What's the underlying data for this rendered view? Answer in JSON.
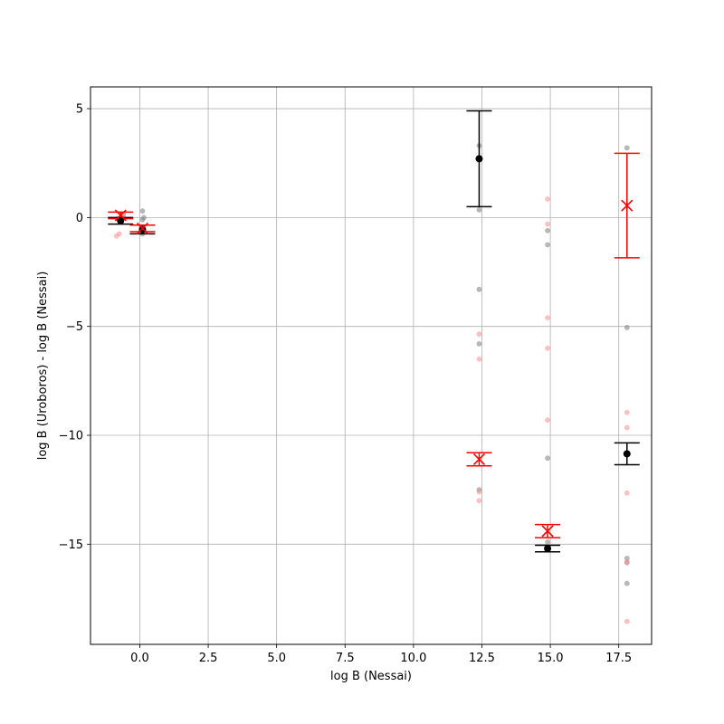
{
  "chart_data": {
    "type": "scatter",
    "title": "",
    "xlabel": "log B (Nessai)",
    "ylabel": "log B (Uroboros) - log B (Nessai)",
    "xlim": [
      -1.8,
      18.7
    ],
    "ylim": [
      -19.6,
      6.0
    ],
    "xticks": [
      0.0,
      2.5,
      5.0,
      7.5,
      10.0,
      12.5,
      15.0,
      17.5
    ],
    "xtick_labels": [
      "0.0",
      "2.5",
      "5.0",
      "7.5",
      "10.0",
      "12.5",
      "15.0",
      "17.5"
    ],
    "yticks": [
      5,
      0,
      -5,
      -10,
      -15
    ],
    "ytick_labels": [
      "5",
      "0",
      "−5",
      "−10",
      "−15"
    ],
    "grid": true,
    "series": [
      {
        "marker": "circle",
        "color": "#000000",
        "raw_color": "#808080",
        "groups": [
          {
            "x": -0.7,
            "y": -0.15,
            "yerr_low": 0.15,
            "yerr_high": 0.15,
            "raw": [
              [
                -0.7,
                0.0
              ],
              [
                -0.6,
                0.15
              ],
              [
                -0.8,
                -0.05
              ]
            ]
          },
          {
            "x": 0.1,
            "y": -0.55,
            "yerr_low": 0.2,
            "yerr_high": 0.2,
            "raw": [
              [
                0.1,
                0.3
              ],
              [
                0.15,
                0.0
              ],
              [
                0.1,
                -0.1
              ],
              [
                0.1,
                -0.55
              ],
              [
                0.1,
                -0.75
              ]
            ]
          },
          {
            "x": 12.4,
            "y": 2.7,
            "yerr_low": 2.2,
            "yerr_high": 2.2,
            "raw": [
              [
                12.4,
                3.3
              ],
              [
                12.4,
                0.35
              ],
              [
                12.4,
                -3.3
              ],
              [
                12.4,
                -5.8
              ],
              [
                12.4,
                -12.5
              ]
            ]
          },
          {
            "x": 14.9,
            "y": -15.2,
            "yerr_low": 0.15,
            "yerr_high": 0.15,
            "raw": [
              [
                14.9,
                -0.6
              ],
              [
                14.9,
                -1.25
              ],
              [
                14.9,
                -11.05
              ],
              [
                14.9,
                -14.9
              ]
            ]
          },
          {
            "x": 17.8,
            "y": -10.85,
            "yerr_low": 0.5,
            "yerr_high": 0.5,
            "raw": [
              [
                17.8,
                3.2
              ],
              [
                17.8,
                -5.05
              ],
              [
                17.8,
                -15.65
              ],
              [
                17.8,
                -15.85
              ],
              [
                17.8,
                -16.8
              ]
            ]
          }
        ]
      },
      {
        "marker": "x",
        "color": "#ff0000",
        "raw_color": "#ff9090",
        "groups": [
          {
            "x": -0.7,
            "y": 0.1,
            "yerr_low": 0.15,
            "yerr_high": 0.15,
            "raw": [
              [
                -0.75,
                -0.75
              ],
              [
                -0.85,
                -0.85
              ],
              [
                -0.6,
                0.05
              ]
            ]
          },
          {
            "x": 0.1,
            "y": -0.5,
            "yerr_low": 0.15,
            "yerr_high": 0.15,
            "raw": [
              [
                0.05,
                -0.45
              ],
              [
                0.1,
                -0.6
              ]
            ]
          },
          {
            "x": 12.4,
            "y": -11.1,
            "yerr_low": 0.3,
            "yerr_high": 0.3,
            "raw": [
              [
                12.4,
                -5.35
              ],
              [
                12.4,
                -6.5
              ],
              [
                12.4,
                -12.6
              ],
              [
                12.4,
                -13.0
              ]
            ]
          },
          {
            "x": 14.9,
            "y": -14.4,
            "yerr_low": 0.3,
            "yerr_high": 0.3,
            "raw": [
              [
                14.9,
                0.85
              ],
              [
                14.9,
                -0.3
              ],
              [
                14.9,
                -4.6
              ],
              [
                14.9,
                -6.0
              ],
              [
                14.9,
                -9.3
              ]
            ]
          },
          {
            "x": 17.8,
            "y": 0.55,
            "yerr_low": 2.4,
            "yerr_high": 2.4,
            "raw": [
              [
                17.8,
                -8.95
              ],
              [
                17.8,
                -9.65
              ],
              [
                17.8,
                -12.65
              ],
              [
                17.8,
                -15.8
              ],
              [
                17.8,
                -18.55
              ]
            ]
          }
        ]
      }
    ]
  }
}
